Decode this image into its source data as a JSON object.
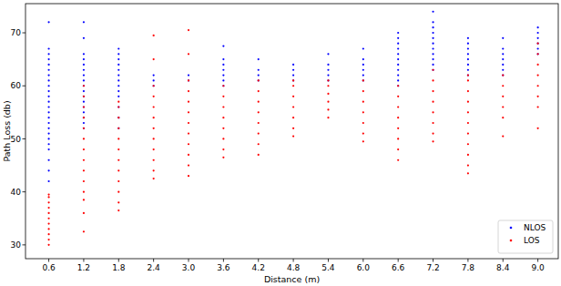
{
  "chart_data": {
    "type": "scatter",
    "x_label": "Distance (m)",
    "y_label": "Path Loss (db)",
    "xlim": [
      0.2,
      9.35
    ],
    "ylim": [
      27.4,
      75.5
    ],
    "xticks": [
      0.6,
      1.2,
      1.8,
      2.4,
      {
        "value": 3,
        "label": "3.0"
      },
      3.6,
      4.2,
      4.8,
      5.4,
      {
        "value": 6,
        "label": "6.0"
      },
      6.6,
      7.2,
      7.8,
      8.4,
      {
        "value": 9,
        "label": "9.0"
      }
    ],
    "yticks": [
      30,
      40,
      50,
      60,
      70
    ],
    "legend": "lower right",
    "marker": "dot",
    "series": [
      {
        "name": "NLOS",
        "color": "#0000ff",
        "x": [
          0.6,
          0.6,
          0.6,
          0.6,
          0.6,
          0.6,
          0.6,
          0.6,
          0.6,
          0.6,
          0.6,
          0.6,
          0.6,
          0.6,
          0.6,
          0.6,
          0.6,
          0.6,
          0.6,
          0.6,
          0.6,
          0.6,
          0.6,
          0.6,
          1.2,
          1.2,
          1.2,
          1.2,
          1.2,
          1.2,
          1.2,
          1.2,
          1.2,
          1.2,
          1.2,
          1.2,
          1.2,
          1.2,
          1.2,
          1.2,
          1.2,
          1.8,
          1.8,
          1.8,
          1.8,
          1.8,
          1.8,
          1.8,
          1.8,
          1.8,
          1.8,
          1.8,
          1.8,
          1.8,
          2.4,
          2.4,
          2.4,
          3,
          3,
          3.6,
          3.6,
          3.6,
          3.6,
          3.6,
          3.6,
          3.6,
          4.2,
          4.2,
          4.2,
          4.2,
          4.8,
          4.8,
          4.8,
          4.8,
          5.4,
          5.4,
          5.4,
          5.4,
          5.4,
          6,
          6,
          6,
          6,
          6,
          6,
          6.6,
          6.6,
          6.6,
          6.6,
          6.6,
          6.6,
          6.6,
          6.6,
          6.6,
          6.6,
          6.6,
          7.2,
          7.2,
          7.2,
          7.2,
          7.2,
          7.2,
          7.2,
          7.2,
          7.2,
          7.2,
          7.2,
          7.8,
          7.8,
          7.8,
          7.8,
          7.8,
          7.8,
          7.8,
          7.8,
          8.4,
          8.4,
          8.4,
          8.4,
          8.4,
          8.4,
          8.4,
          9,
          9,
          9,
          9,
          9,
          9
        ],
        "values": [
          42,
          44,
          46,
          48,
          49,
          50,
          51,
          52,
          53,
          54,
          55,
          56,
          57,
          58,
          59,
          60,
          61,
          62,
          63,
          64,
          65,
          66,
          67,
          72,
          52,
          53,
          54,
          55,
          56,
          57,
          58,
          59,
          60,
          61,
          62,
          63,
          64,
          65,
          66,
          69,
          72,
          52,
          54,
          56,
          58,
          59,
          60,
          61,
          62,
          63,
          64,
          65,
          66,
          67,
          60,
          61,
          62,
          61,
          62,
          60,
          61,
          62,
          63,
          64,
          65,
          67.5,
          61,
          62,
          63,
          65,
          61,
          62,
          63,
          64,
          61,
          62,
          63,
          64,
          66,
          61,
          62,
          63,
          64,
          65,
          67,
          60,
          61,
          62,
          63,
          64,
          65,
          66,
          67,
          68,
          69,
          70,
          63,
          64,
          65,
          66,
          67,
          68,
          69,
          70,
          71,
          72,
          74,
          62,
          63,
          64,
          65,
          66,
          67,
          68,
          69,
          62,
          63,
          64,
          65,
          66,
          67,
          69,
          66,
          67,
          68,
          69,
          70,
          71
        ]
      },
      {
        "name": "LOS",
        "color": "#ff0000",
        "x": [
          0.6,
          0.6,
          0.6,
          0.6,
          0.6,
          0.6,
          0.6,
          0.6,
          0.6,
          0.6,
          0.6,
          1.2,
          1.2,
          1.2,
          1.2,
          1.2,
          1.2,
          1.2,
          1.2,
          1.2,
          1.2,
          1.2,
          1.2,
          1.2,
          1.2,
          1.8,
          1.8,
          1.8,
          1.8,
          1.8,
          1.8,
          1.8,
          1.8,
          1.8,
          1.8,
          1.8,
          1.8,
          2.4,
          2.4,
          2.4,
          2.4,
          2.4,
          2.4,
          2.4,
          2.4,
          2.4,
          2.4,
          2.4,
          2.4,
          3,
          3,
          3,
          3,
          3,
          3,
          3,
          3,
          3,
          3,
          3,
          3,
          3.6,
          3.6,
          3.6,
          3.6,
          3.6,
          3.6,
          3.6,
          3.6,
          4.2,
          4.2,
          4.2,
          4.2,
          4.2,
          4.2,
          4.2,
          4.2,
          4.8,
          4.8,
          4.8,
          4.8,
          4.8,
          4.8,
          4.8,
          5.4,
          5.4,
          5.4,
          5.4,
          5.4,
          5.4,
          6,
          6,
          6,
          6,
          6,
          6,
          6,
          6.6,
          6.6,
          6.6,
          6.6,
          6.6,
          6.6,
          6.6,
          6.6,
          7.2,
          7.2,
          7.2,
          7.2,
          7.2,
          7.2,
          7.2,
          7.2,
          7.8,
          7.8,
          7.8,
          7.8,
          7.8,
          7.8,
          7.8,
          7.8,
          7.8,
          7.8,
          7.8,
          8.4,
          8.4,
          8.4,
          8.4,
          8.4,
          8.4,
          9,
          9,
          9,
          9,
          9,
          9,
          9,
          9
        ],
        "values": [
          30,
          31,
          32,
          33,
          34,
          35,
          36,
          37,
          38,
          39,
          39.5,
          32.5,
          36,
          38.5,
          40,
          42,
          44,
          46,
          48,
          50,
          52,
          54,
          56,
          58,
          60,
          36.5,
          38,
          40,
          42,
          44,
          46,
          48,
          50,
          52,
          54,
          56,
          57,
          42.5,
          44,
          46,
          48,
          50,
          52,
          54,
          56,
          58,
          60,
          65,
          69.5,
          43,
          45,
          47,
          49,
          51,
          53,
          55,
          57,
          59,
          61,
          66,
          70.5,
          46.5,
          48,
          50,
          52,
          54,
          56,
          58,
          60,
          47,
          49,
          51,
          53,
          55,
          57,
          59,
          61,
          50.5,
          52,
          54,
          56,
          58,
          60,
          61,
          54,
          55.5,
          57,
          58.5,
          60,
          61,
          49.5,
          51,
          53,
          55,
          57,
          59,
          61,
          46,
          48,
          50,
          52,
          54,
          56,
          58,
          60,
          49.5,
          51,
          53,
          55,
          57,
          59,
          61,
          63,
          43.5,
          45,
          47,
          49,
          51,
          53,
          55,
          57,
          59,
          61,
          62,
          50.5,
          54,
          56,
          58,
          60,
          62,
          52,
          56,
          58,
          60,
          62,
          64,
          66,
          68
        ]
      }
    ]
  }
}
